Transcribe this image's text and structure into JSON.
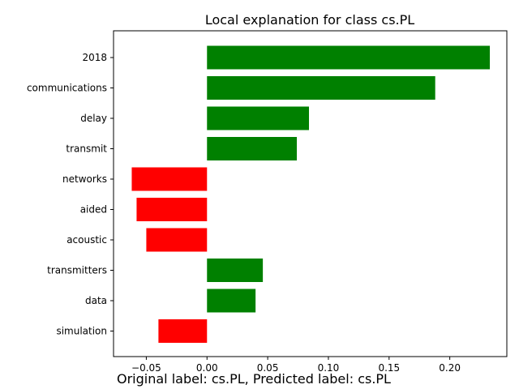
{
  "chart_data": {
    "type": "bar",
    "orientation": "horizontal",
    "title": "Local explanation for class cs.PL",
    "categories": [
      "2018",
      "communications",
      "delay",
      "transmit",
      "networks",
      "aided",
      "acoustic",
      "transmitters",
      "data",
      "simulation"
    ],
    "values": [
      0.233,
      0.188,
      0.084,
      0.074,
      -0.062,
      -0.058,
      -0.05,
      0.046,
      0.04,
      -0.04
    ],
    "xlim": [
      -0.077,
      0.247
    ],
    "xticks": [
      -0.05,
      0.0,
      0.05,
      0.1,
      0.15,
      0.2
    ],
    "xtick_labels": [
      "−0.05",
      "0.00",
      "0.05",
      "0.10",
      "0.15",
      "0.20"
    ],
    "positive_color": "#008000",
    "negative_color": "#ff0000",
    "grid": false,
    "legend": "none"
  },
  "caption": "Original label: cs.PL, Predicted label: cs.PL"
}
